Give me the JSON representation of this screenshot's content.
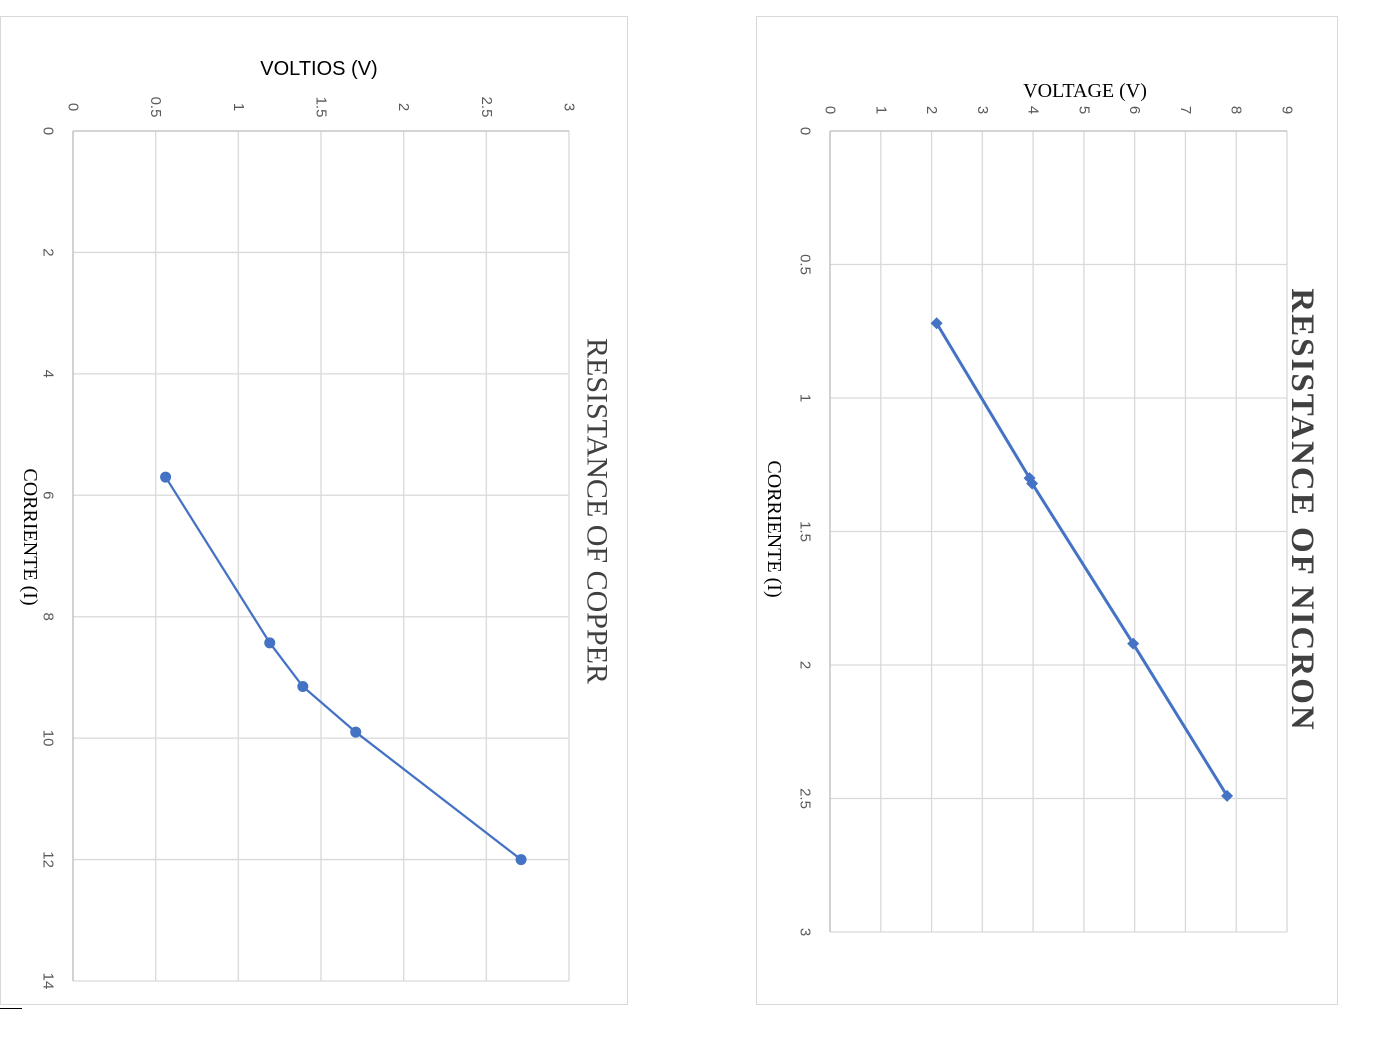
{
  "chart_data": [
    {
      "type": "scatter",
      "title": "RESISTANCE OF COPPER",
      "xlabel": "CORRIENTE (I)",
      "ylabel": "VOLTIOS (V)",
      "xlim": [
        0,
        14
      ],
      "ylim": [
        0,
        3
      ],
      "x_ticks": [
        "0",
        "2",
        "4",
        "6",
        "8",
        "10",
        "12",
        "14"
      ],
      "y_ticks": [
        "0",
        "0.5",
        "1",
        "1.5",
        "2",
        "2.5",
        "3"
      ],
      "grid": true,
      "orientation": "rotated 90° clockwise",
      "marker": "circle",
      "color": "#4472c4",
      "series": [
        {
          "x": [
            5.7,
            8.43,
            9.15,
            9.9,
            12.0
          ],
          "y": [
            0.56,
            1.19,
            1.39,
            1.71,
            2.71
          ]
        }
      ]
    },
    {
      "type": "scatter",
      "title": "RESISTANCE OF NICRON",
      "xlabel": "CORRIENTE (I)",
      "ylabel": "VOLTAGE (V)",
      "xlim": [
        0,
        3
      ],
      "ylim": [
        0,
        9
      ],
      "x_ticks": [
        "0",
        "0.5",
        "1",
        "1.5",
        "2",
        "2.5",
        "3"
      ],
      "y_ticks": [
        "0",
        "1",
        "2",
        "3",
        "4",
        "5",
        "6",
        "7",
        "8",
        "9"
      ],
      "grid": true,
      "orientation": "rotated 90° clockwise",
      "marker": "diamond",
      "color": "#4472c4",
      "series": [
        {
          "x": [
            0.72,
            1.3,
            1.32,
            1.92,
            2.49
          ],
          "y": [
            2.1,
            3.93,
            3.98,
            5.97,
            7.82
          ]
        }
      ]
    }
  ]
}
